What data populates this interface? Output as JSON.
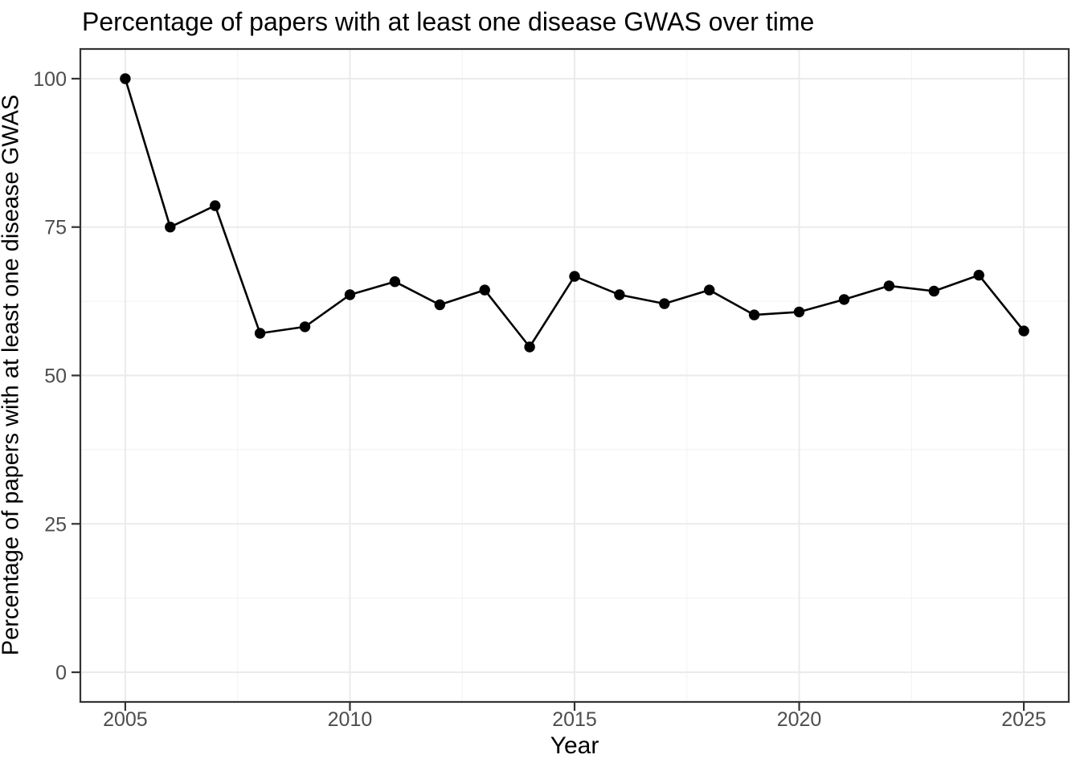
{
  "chart_data": {
    "type": "line",
    "title": "Percentage of papers with at least one disease GWAS over time",
    "xlabel": "Year",
    "ylabel": "Percentage of papers with at least one disease GWAS",
    "x": [
      2005,
      2006,
      2007,
      2008,
      2009,
      2010,
      2011,
      2012,
      2013,
      2014,
      2015,
      2016,
      2017,
      2018,
      2019,
      2020,
      2021,
      2022,
      2023,
      2024,
      2025
    ],
    "values": [
      100,
      75,
      78.6,
      57.1,
      58.2,
      63.6,
      65.8,
      61.9,
      64.4,
      54.8,
      66.7,
      63.6,
      62.1,
      64.4,
      60.2,
      60.7,
      62.8,
      65.1,
      64.2,
      66.9,
      57.5
    ],
    "series_name": "Percentage of papers with at least one disease GWAS",
    "xlim": [
      2004,
      2026
    ],
    "ylim": [
      -5,
      105
    ],
    "x_major_ticks": [
      2005,
      2010,
      2015,
      2020,
      2025
    ],
    "x_tick_labels": [
      "2005",
      "2010",
      "2015",
      "2020",
      "2025"
    ],
    "x_minor_gridlines": [
      2007.5,
      2012.5,
      2017.5,
      2022.5
    ],
    "y_major_ticks": [
      0,
      25,
      50,
      75,
      100
    ],
    "y_tick_labels": [
      "0",
      "25",
      "50",
      "75",
      "100"
    ],
    "y_minor_gridlines": [
      12.5,
      37.5,
      62.5,
      87.5
    ],
    "grid": true,
    "legend": "none",
    "marker_shape": "filled-circle",
    "colors": {
      "series": "#000000",
      "grid_major": "#EBEBEB",
      "grid_minor": "#F4F4F4",
      "panel_border": "#333333",
      "tick_mark": "#333333",
      "tick_label": "#4D4D4D",
      "title_text": "#000000",
      "background": "#FFFFFF"
    }
  }
}
